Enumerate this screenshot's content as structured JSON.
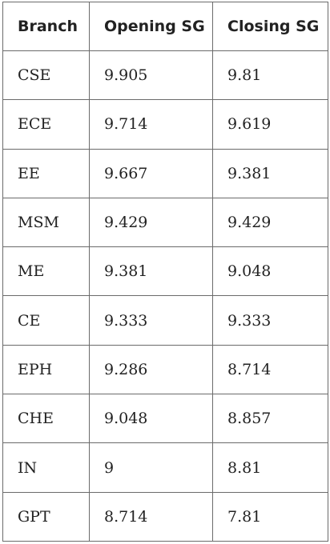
{
  "table": {
    "headers": [
      "Branch",
      "Opening SG",
      "Closing SG"
    ],
    "rows": [
      [
        "CSE",
        "9.905",
        "9.81"
      ],
      [
        "ECE",
        "9.714",
        "9.619"
      ],
      [
        "EE",
        "9.667",
        "9.381"
      ],
      [
        "MSM",
        "9.429",
        "9.429"
      ],
      [
        "ME",
        "9.381",
        "9.048"
      ],
      [
        "CE",
        "9.333",
        "9.333"
      ],
      [
        "EPH",
        "9.286",
        "8.714"
      ],
      [
        "CHE",
        "9.048",
        "8.857"
      ],
      [
        "IN",
        "9",
        "8.81"
      ],
      [
        "GPT",
        "8.714",
        "7.81"
      ]
    ]
  }
}
